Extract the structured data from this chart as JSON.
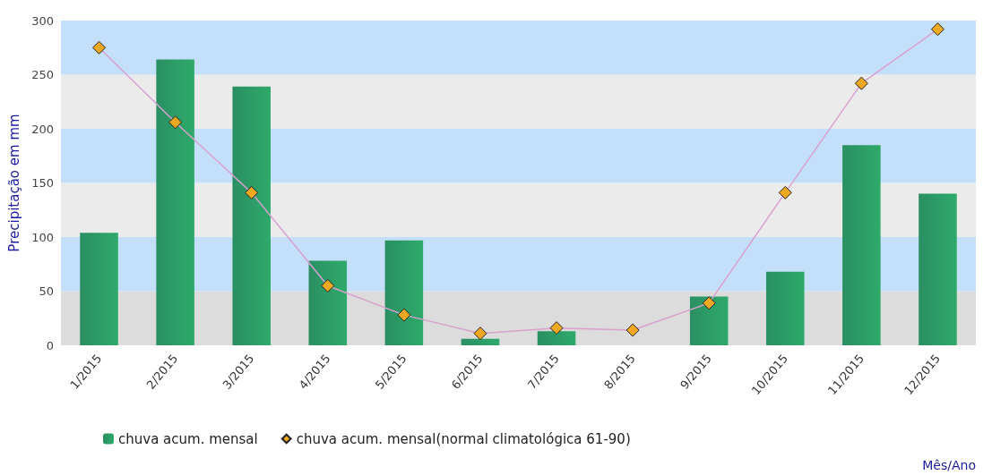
{
  "chart_data": {
    "type": "bar",
    "annotations": [
      "Mês/Ano"
    ],
    "ylabel": "Precipitação em mm",
    "categories": [
      "1/2015",
      "2/2015",
      "3/2015",
      "4/2015",
      "5/2015",
      "6/2015",
      "7/2015",
      "8/2015",
      "9/2015",
      "10/2015",
      "11/2015",
      "12/2015"
    ],
    "series": [
      {
        "name": "chuva acum. mensal",
        "color": "#2eaa6a",
        "values": [
          104,
          264,
          239,
          78,
          97,
          6,
          13,
          null,
          45,
          68,
          185,
          140
        ]
      },
      {
        "name": "chuva acum. mensal(normal climatológica 61-90)",
        "type": "line",
        "color": "#f0a820",
        "values": [
          275,
          206,
          141,
          55,
          28,
          11,
          16,
          14,
          39,
          141,
          242,
          292
        ]
      }
    ],
    "bands": [
      {
        "axis": "y",
        "from": 0,
        "to": 50,
        "color": "#dcdcdc"
      },
      {
        "axis": "y",
        "from": 50,
        "to": 100,
        "color": "#c4dff9"
      },
      {
        "axis": "y",
        "from": 100,
        "to": 150,
        "color": "#ebebeb"
      },
      {
        "axis": "y",
        "from": 150,
        "to": 200,
        "color": "#c4dff9"
      },
      {
        "axis": "y",
        "from": 200,
        "to": 250,
        "color": "#ebebeb"
      },
      {
        "axis": "y",
        "from": 250,
        "to": 300,
        "color": "#c4dff9"
      }
    ],
    "ylim": [
      0,
      300
    ],
    "yticks": [
      0,
      50,
      100,
      150,
      200,
      250,
      300
    ],
    "legend": "bottom",
    "marker": "diamond"
  }
}
